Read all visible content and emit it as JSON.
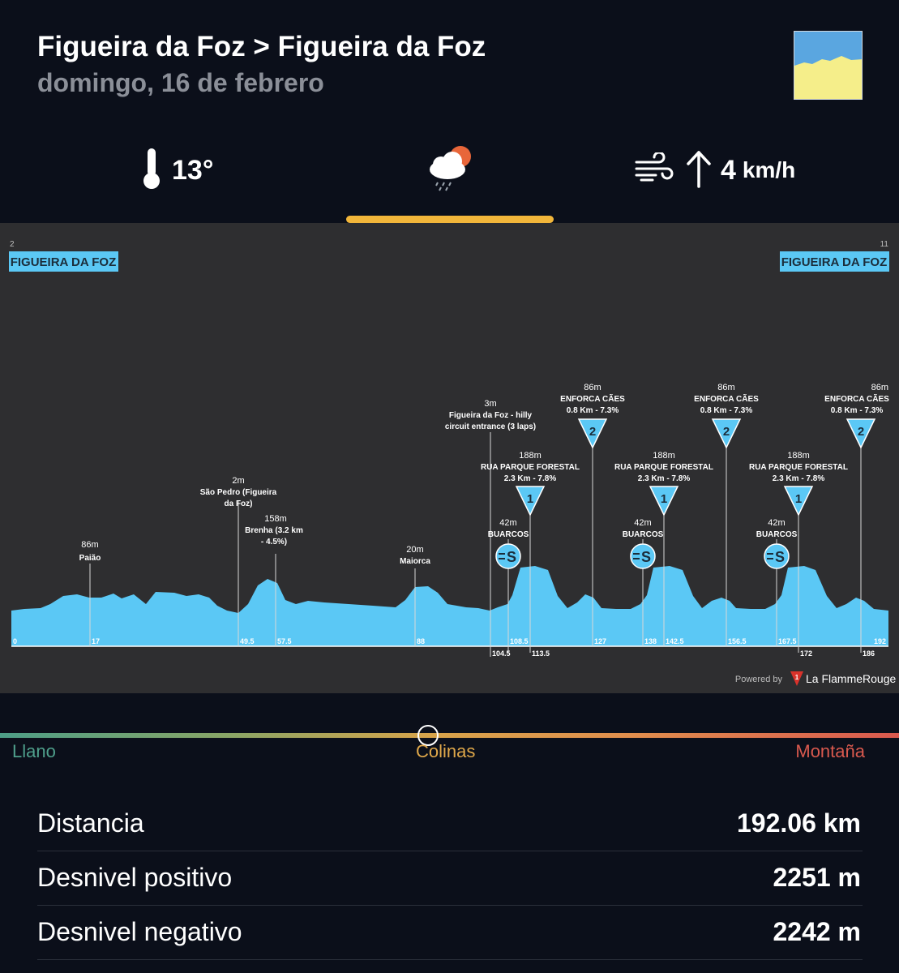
{
  "header": {
    "title": "Figueira da Foz > Figueira da Foz",
    "date": "domingo, 16 de febrero"
  },
  "weather": {
    "temperature": "13°",
    "temperature_icon": "thermometer-icon",
    "condition_icon": "cloud-sun-rain-icon",
    "wind_speed": "4",
    "wind_unit": "km/h",
    "wind_icon": "wind-icon",
    "wind_direction_icon": "arrow-up-icon"
  },
  "profile": {
    "start_name": "FIGUEIRA DA FOZ",
    "start_number": "2",
    "finish_name": "FIGUEIRA DA FOZ",
    "finish_number": "11",
    "powered_by": "Powered by",
    "brand": "La FlammeRouge",
    "fill_color": "#5bc8f5",
    "labels": [
      {
        "alt": "86m",
        "lines": [
          "Paião"
        ]
      },
      {
        "alt": "2m",
        "lines": [
          "São Pedro (Figueira",
          "da Foz)"
        ]
      },
      {
        "alt": "158m",
        "lines": [
          "Brenha (3.2 km",
          "- 4.5%)"
        ]
      },
      {
        "alt": "20m",
        "lines": [
          "Maiorca"
        ]
      },
      {
        "alt": "3m",
        "lines": [
          "Figueira da Foz - hilly",
          "circuit entrance (3 laps)"
        ]
      },
      {
        "alt": "42m",
        "lines": [
          "BUARCOS"
        ]
      },
      {
        "alt": "188m",
        "lines": [
          "RUA PARQUE FORESTAL",
          "2.3 Km - 7.8%"
        ]
      },
      {
        "alt": "86m",
        "lines": [
          "ENFORCA CÃES",
          "0.8 Km - 7.3%"
        ]
      },
      {
        "alt": "42m",
        "lines": [
          "BUARCOS"
        ]
      },
      {
        "alt": "188m",
        "lines": [
          "RUA PARQUE FORESTAL",
          "2.3 Km - 7.8%"
        ]
      },
      {
        "alt": "86m",
        "lines": [
          "ENFORCA CÃES",
          "0.8 Km - 7.3%"
        ]
      },
      {
        "alt": "42m",
        "lines": [
          "BUARCOS"
        ]
      },
      {
        "alt": "188m",
        "lines": [
          "RUA PARQUE FORESTAL",
          "2.3 Km - 7.8%"
        ]
      },
      {
        "alt": "86m",
        "lines": [
          "ENFORCA CÃES",
          "0.8 Km - 7.3%"
        ]
      }
    ],
    "km_markers": [
      "0",
      "17",
      "49.5",
      "57.5",
      "88",
      "104.5",
      "108.5",
      "113.5",
      "127",
      "138",
      "142.5",
      "156.5",
      "167.5",
      "172",
      "186",
      "192"
    ],
    "climb_categories": [
      "1",
      "2",
      "1",
      "2",
      "1",
      "2"
    ],
    "sprint_label": "S"
  },
  "difficulty": {
    "levels": [
      "Llano",
      "Colinas",
      "Montaña"
    ],
    "selected": "Colinas"
  },
  "stats": [
    {
      "label": "Distancia",
      "value": "192.06 km"
    },
    {
      "label": "Desnivel positivo",
      "value": "2251 m"
    },
    {
      "label": "Desnivel negativo",
      "value": "2242 m"
    }
  ]
}
